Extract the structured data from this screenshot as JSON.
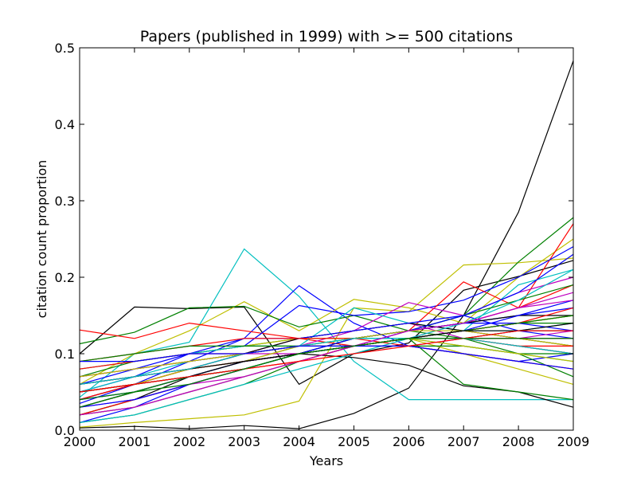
{
  "chart_data": {
    "type": "line",
    "title": "Papers (published in 1999) with >= 500 citations",
    "xlabel": "Years",
    "ylabel": "citation count proportion",
    "x": [
      2000,
      2001,
      2002,
      2003,
      2004,
      2005,
      2006,
      2007,
      2008,
      2009
    ],
    "xlim": [
      2000,
      2009
    ],
    "ylim": [
      0,
      0.5
    ],
    "x_ticks": [
      "2000",
      "2001",
      "2002",
      "2003",
      "2004",
      "2005",
      "2006",
      "2007",
      "2008",
      "2009"
    ],
    "y_ticks": [
      "0.0",
      "0.1",
      "0.2",
      "0.3",
      "0.4",
      "0.5"
    ],
    "grid": false,
    "legend": "none",
    "palette": [
      "#0000ff",
      "#008000",
      "#ff0000",
      "#00bfbf",
      "#bf00bf",
      "#bfbf00",
      "#000000"
    ],
    "series": [
      {
        "color": "#000000",
        "values": [
          0.003,
          0.005,
          0.002,
          0.006,
          0.002,
          0.022,
          0.055,
          0.15,
          0.285,
          0.483
        ]
      },
      {
        "color": "#000000",
        "values": [
          0.1,
          0.161,
          0.159,
          0.161,
          0.06,
          0.1,
          0.114,
          0.183,
          0.201,
          0.222
        ]
      },
      {
        "color": "#00bfbf",
        "values": [
          0.043,
          0.1,
          0.115,
          0.237,
          0.175,
          0.09,
          0.04,
          0.04,
          0.04,
          0.04
        ]
      },
      {
        "color": "#0000ff",
        "values": [
          0.035,
          0.06,
          0.09,
          0.12,
          0.189,
          0.14,
          0.11,
          0.1,
          0.09,
          0.1
        ]
      },
      {
        "color": "#bfbf00",
        "values": [
          0.004,
          0.01,
          0.015,
          0.02,
          0.038,
          0.16,
          0.155,
          0.216,
          0.219,
          0.225
        ]
      },
      {
        "color": "#bfbf00",
        "values": [
          0.06,
          0.1,
          0.13,
          0.168,
          0.13,
          0.171,
          0.16,
          0.14,
          0.2,
          0.25
        ]
      },
      {
        "color": "#008000",
        "values": [
          0.113,
          0.128,
          0.16,
          0.162,
          0.135,
          0.15,
          0.13,
          0.15,
          0.22,
          0.278
        ]
      },
      {
        "color": "#ff0000",
        "values": [
          0.131,
          0.12,
          0.14,
          0.13,
          0.12,
          0.11,
          0.13,
          0.14,
          0.16,
          0.27
        ]
      },
      {
        "color": "#0000ff",
        "values": [
          0.05,
          0.07,
          0.1,
          0.11,
          0.163,
          0.15,
          0.155,
          0.17,
          0.2,
          0.24
        ]
      },
      {
        "color": "#000000",
        "values": [
          0.02,
          0.04,
          0.07,
          0.09,
          0.1,
          0.095,
          0.085,
          0.058,
          0.05,
          0.03
        ]
      },
      {
        "color": "#ff0000",
        "values": [
          0.03,
          0.05,
          0.07,
          0.09,
          0.11,
          0.12,
          0.13,
          0.194,
          0.16,
          0.19
        ]
      },
      {
        "color": "#bf00bf",
        "values": [
          0.04,
          0.06,
          0.08,
          0.1,
          0.11,
          0.13,
          0.167,
          0.15,
          0.18,
          0.2
        ]
      },
      {
        "color": "#008000",
        "values": [
          0.01,
          0.02,
          0.04,
          0.06,
          0.09,
          0.11,
          0.12,
          0.06,
          0.05,
          0.04
        ]
      },
      {
        "color": "#0000ff",
        "values": [
          0.02,
          0.03,
          0.06,
          0.08,
          0.1,
          0.12,
          0.13,
          0.14,
          0.15,
          0.16
        ]
      },
      {
        "color": "#ff0000",
        "values": [
          0.06,
          0.07,
          0.08,
          0.09,
          0.1,
          0.11,
          0.12,
          0.13,
          0.14,
          0.15
        ]
      },
      {
        "color": "#008000",
        "values": [
          0.07,
          0.09,
          0.1,
          0.11,
          0.12,
          0.12,
          0.13,
          0.12,
          0.1,
          0.07
        ]
      },
      {
        "color": "#00bfbf",
        "values": [
          0.03,
          0.05,
          0.07,
          0.09,
          0.11,
          0.16,
          0.14,
          0.13,
          0.19,
          0.21
        ]
      },
      {
        "color": "#bf00bf",
        "values": [
          0.05,
          0.06,
          0.08,
          0.1,
          0.12,
          0.13,
          0.14,
          0.12,
          0.11,
          0.1
        ]
      },
      {
        "color": "#bfbf00",
        "values": [
          0.08,
          0.09,
          0.1,
          0.11,
          0.12,
          0.12,
          0.12,
          0.1,
          0.08,
          0.06
        ]
      },
      {
        "color": "#000000",
        "values": [
          0.04,
          0.06,
          0.08,
          0.1,
          0.12,
          0.13,
          0.14,
          0.13,
          0.12,
          0.11
        ]
      },
      {
        "color": "#0000ff",
        "values": [
          0.06,
          0.08,
          0.1,
          0.12,
          0.12,
          0.13,
          0.14,
          0.15,
          0.13,
          0.12
        ]
      },
      {
        "color": "#ff0000",
        "values": [
          0.09,
          0.1,
          0.11,
          0.12,
          0.12,
          0.12,
          0.11,
          0.1,
          0.09,
          0.08
        ]
      },
      {
        "color": "#008000",
        "values": [
          0.02,
          0.04,
          0.06,
          0.08,
          0.1,
          0.12,
          0.13,
          0.15,
          0.17,
          0.19
        ]
      },
      {
        "color": "#00bfbf",
        "values": [
          0.05,
          0.07,
          0.09,
          0.1,
          0.11,
          0.12,
          0.12,
          0.13,
          0.13,
          0.14
        ]
      },
      {
        "color": "#bf00bf",
        "values": [
          0.03,
          0.04,
          0.06,
          0.07,
          0.09,
          0.11,
          0.12,
          0.14,
          0.16,
          0.18
        ]
      },
      {
        "color": "#000000",
        "values": [
          0.07,
          0.08,
          0.09,
          0.1,
          0.11,
          0.11,
          0.12,
          0.12,
          0.13,
          0.13
        ]
      },
      {
        "color": "#0000ff",
        "values": [
          0.01,
          0.03,
          0.05,
          0.07,
          0.09,
          0.11,
          0.13,
          0.15,
          0.18,
          0.23
        ]
      },
      {
        "color": "#ff0000",
        "values": [
          0.04,
          0.06,
          0.08,
          0.09,
          0.1,
          0.11,
          0.12,
          0.12,
          0.11,
          0.1
        ]
      },
      {
        "color": "#bfbf00",
        "values": [
          0.02,
          0.03,
          0.05,
          0.07,
          0.09,
          0.11,
          0.12,
          0.13,
          0.14,
          0.15
        ]
      },
      {
        "color": "#008000",
        "values": [
          0.05,
          0.06,
          0.07,
          0.08,
          0.1,
          0.11,
          0.12,
          0.13,
          0.14,
          0.14
        ]
      },
      {
        "color": "#00bfbf",
        "values": [
          0.08,
          0.09,
          0.1,
          0.11,
          0.11,
          0.12,
          0.12,
          0.11,
          0.1,
          0.09
        ]
      },
      {
        "color": "#bf00bf",
        "values": [
          0.06,
          0.07,
          0.08,
          0.09,
          0.1,
          0.11,
          0.12,
          0.13,
          0.12,
          0.12
        ]
      },
      {
        "color": "#000000",
        "values": [
          0.03,
          0.05,
          0.07,
          0.08,
          0.1,
          0.12,
          0.13,
          0.14,
          0.15,
          0.15
        ]
      },
      {
        "color": "#0000ff",
        "values": [
          0.04,
          0.05,
          0.07,
          0.09,
          0.1,
          0.12,
          0.13,
          0.14,
          0.14,
          0.13
        ]
      },
      {
        "color": "#ff0000",
        "values": [
          0.02,
          0.04,
          0.06,
          0.08,
          0.09,
          0.11,
          0.12,
          0.13,
          0.14,
          0.16
        ]
      },
      {
        "color": "#008000",
        "values": [
          0.09,
          0.1,
          0.11,
          0.11,
          0.11,
          0.11,
          0.11,
          0.11,
          0.1,
          0.1
        ]
      },
      {
        "color": "#00bfbf",
        "values": [
          0.01,
          0.02,
          0.04,
          0.06,
          0.08,
          0.1,
          0.12,
          0.14,
          0.17,
          0.21
        ]
      },
      {
        "color": "#bf00bf",
        "values": [
          0.07,
          0.08,
          0.09,
          0.1,
          0.1,
          0.11,
          0.11,
          0.12,
          0.12,
          0.13
        ]
      },
      {
        "color": "#bfbf00",
        "values": [
          0.05,
          0.06,
          0.08,
          0.09,
          0.11,
          0.12,
          0.13,
          0.13,
          0.12,
          0.11
        ]
      },
      {
        "color": "#000000",
        "values": [
          0.06,
          0.07,
          0.08,
          0.09,
          0.1,
          0.11,
          0.12,
          0.12,
          0.12,
          0.12
        ]
      },
      {
        "color": "#0000ff",
        "values": [
          0.03,
          0.04,
          0.06,
          0.08,
          0.1,
          0.11,
          0.12,
          0.13,
          0.15,
          0.17
        ]
      },
      {
        "color": "#ff0000",
        "values": [
          0.08,
          0.09,
          0.1,
          0.1,
          0.11,
          0.11,
          0.12,
          0.12,
          0.11,
          0.11
        ]
      },
      {
        "color": "#008000",
        "values": [
          0.04,
          0.05,
          0.07,
          0.08,
          0.1,
          0.11,
          0.12,
          0.13,
          0.14,
          0.15
        ]
      },
      {
        "color": "#00bfbf",
        "values": [
          0.06,
          0.07,
          0.08,
          0.1,
          0.11,
          0.12,
          0.12,
          0.12,
          0.11,
          0.1
        ]
      },
      {
        "color": "#bf00bf",
        "values": [
          0.02,
          0.03,
          0.05,
          0.07,
          0.09,
          0.11,
          0.13,
          0.14,
          0.16,
          0.17
        ]
      },
      {
        "color": "#bfbf00",
        "values": [
          0.07,
          0.08,
          0.09,
          0.1,
          0.11,
          0.11,
          0.12,
          0.11,
          0.1,
          0.09
        ]
      },
      {
        "color": "#000000",
        "values": [
          0.05,
          0.06,
          0.07,
          0.09,
          0.1,
          0.11,
          0.12,
          0.13,
          0.13,
          0.14
        ]
      },
      {
        "color": "#0000ff",
        "values": [
          0.09,
          0.09,
          0.1,
          0.1,
          0.11,
          0.11,
          0.11,
          0.1,
          0.09,
          0.08
        ]
      },
      {
        "color": "#ff0000",
        "values": [
          0.05,
          0.06,
          0.07,
          0.08,
          0.09,
          0.1,
          0.11,
          0.12,
          0.13,
          0.13
        ]
      },
      {
        "color": "#008000",
        "values": [
          0.03,
          0.05,
          0.06,
          0.08,
          0.1,
          0.11,
          0.12,
          0.12,
          0.12,
          0.12
        ]
      }
    ]
  }
}
